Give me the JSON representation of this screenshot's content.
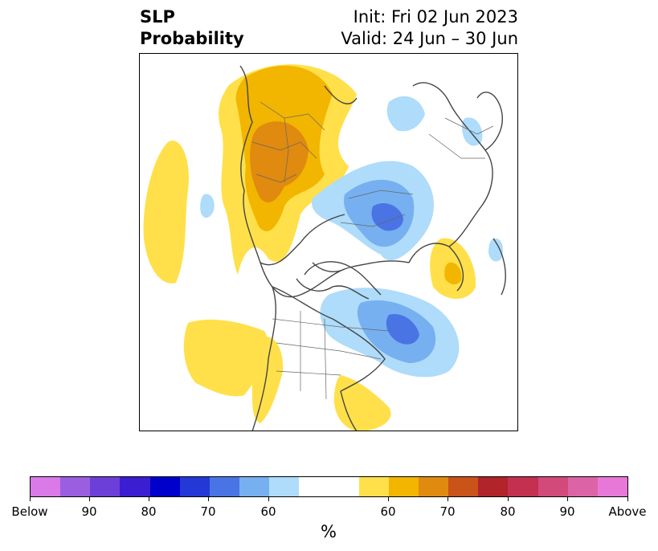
{
  "header": {
    "title_line1": "SLP",
    "title_line2": "Probability",
    "init": "Init: Fri 02 Jun 2023",
    "valid": "Valid: 24 Jun – 30 Jun"
  },
  "colorbar": {
    "unit": "%",
    "colors": [
      "#d97ae8",
      "#9b5ee0",
      "#6c3fd8",
      "#3b1ed2",
      "#0000cc",
      "#2438d8",
      "#4a74e4",
      "#76b0f0",
      "#aedcfa",
      "#ffffff",
      "#ffe04a",
      "#f2b500",
      "#e08a10",
      "#c95318",
      "#b0242a",
      "#c43050",
      "#d24a7a",
      "#dc64a6",
      "#e878d8"
    ],
    "tick_labels": [
      "Below",
      "90",
      "80",
      "70",
      "60",
      "60",
      "70",
      "80",
      "90",
      "Above"
    ]
  },
  "legend_colors": {
    "below_60": "#aedcfa",
    "below_70": "#76b0f0",
    "below_80": "#4a74e4",
    "above_60": "#ffe04a",
    "above_70": "#f2b500",
    "above_80": "#e08a10"
  }
}
